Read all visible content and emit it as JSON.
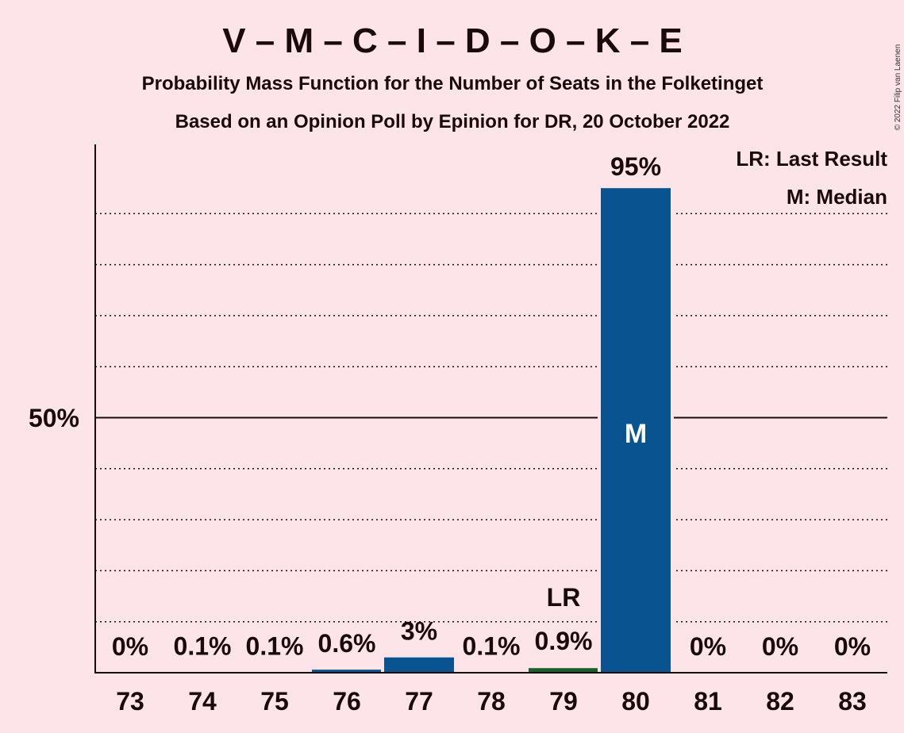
{
  "chart_data": {
    "type": "bar",
    "title": "V – M – C – I – D – O – K – E",
    "subtitle": "Probability Mass Function for the Number of Seats in the Folketinget",
    "subtitle2": "Based on an Opinion Poll by Epinion for DR, 20 October 2022",
    "copyright": "© 2022 Filip van Laenen",
    "categories": [
      "73",
      "74",
      "75",
      "76",
      "77",
      "78",
      "79",
      "80",
      "81",
      "82",
      "83"
    ],
    "values": [
      0,
      0.1,
      0.1,
      0.6,
      3,
      0.1,
      0.9,
      95,
      0,
      0,
      0
    ],
    "value_labels": [
      "0%",
      "0.1%",
      "0.1%",
      "0.6%",
      "3%",
      "0.1%",
      "0.9%",
      "95%",
      "0%",
      "0%",
      "0%"
    ],
    "ylim": [
      0,
      100
    ],
    "y_tick_label": "50%",
    "y_tick_value": 50,
    "last_result_category": "79",
    "last_result_label": "LR",
    "median_category": "80",
    "median_label": "M",
    "legend": [
      "LR: Last Result",
      "M: Median"
    ],
    "colors": {
      "bar": "#0a5391",
      "last_result_bar": "#1a5e2a",
      "background": "#fde4e8"
    }
  }
}
